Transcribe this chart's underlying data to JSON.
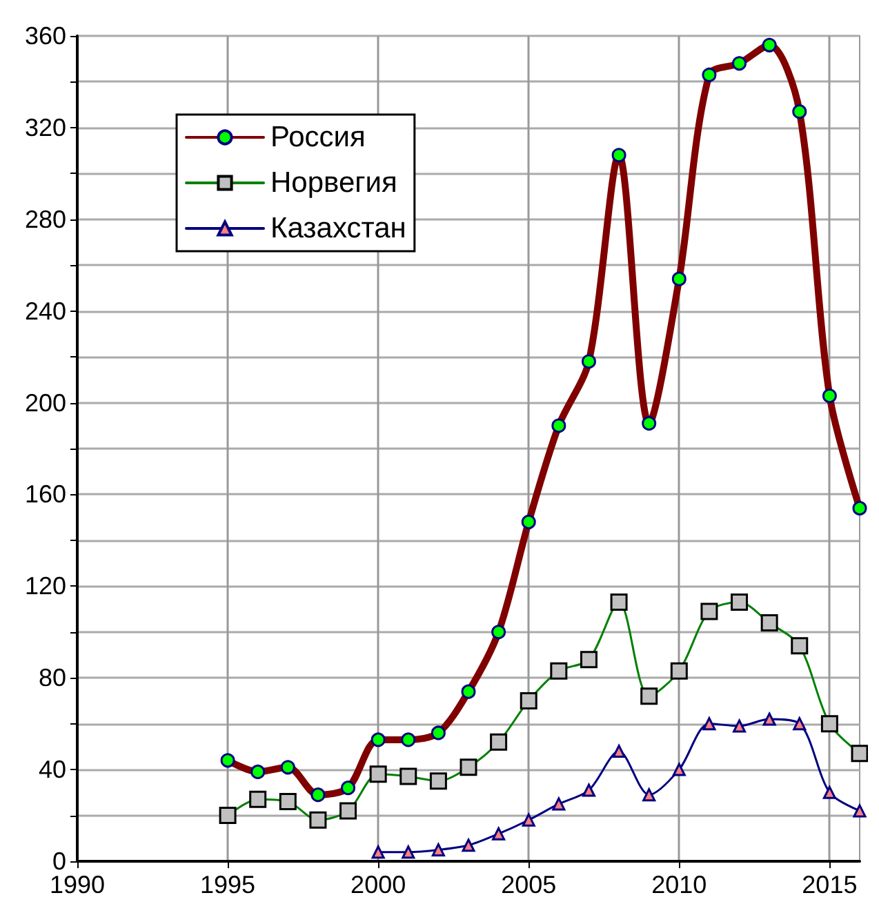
{
  "chart_data": {
    "type": "line",
    "x": [
      1995,
      1996,
      1997,
      1998,
      1999,
      2000,
      2001,
      2002,
      2003,
      2004,
      2005,
      2006,
      2007,
      2008,
      2009,
      2010,
      2011,
      2012,
      2013,
      2014,
      2015,
      2016
    ],
    "series": [
      {
        "name": "Россия",
        "color": "#800000",
        "marker": "circle",
        "values": [
          44,
          39,
          41,
          29,
          32,
          53,
          53,
          56,
          74,
          100,
          148,
          190,
          218,
          308,
          191,
          254,
          343,
          348,
          356,
          327,
          203,
          154
        ]
      },
      {
        "name": "Норвегия",
        "color": "#008000",
        "marker": "square",
        "values": [
          20,
          27,
          26,
          18,
          22,
          38,
          37,
          35,
          41,
          52,
          70,
          83,
          88,
          113,
          72,
          83,
          109,
          113,
          104,
          94,
          60,
          47
        ]
      },
      {
        "name": "Казахстан",
        "color": "#000080",
        "marker": "triangle",
        "values": [
          null,
          null,
          null,
          null,
          null,
          4,
          4,
          5,
          7,
          12,
          18,
          25,
          31,
          48,
          29,
          40,
          60,
          59,
          62,
          60,
          30,
          22
        ]
      }
    ],
    "xlim": [
      1990,
      2016
    ],
    "xticks": [
      1990,
      1995,
      2000,
      2005,
      2010,
      2015
    ],
    "ylim": [
      0,
      360
    ],
    "yticks": [
      0,
      {
        "value": 20,
        "label": null
      },
      40,
      {
        "value": 60,
        "label": null
      },
      80,
      {
        "value": 100,
        "label": null
      },
      120,
      {
        "value": 140,
        "label": null
      },
      160,
      {
        "value": 180,
        "label": null
      },
      200,
      {
        "value": 220,
        "label": null
      },
      240,
      {
        "value": 260,
        "label": null
      },
      280,
      {
        "value": 300,
        "label": null
      },
      320,
      {
        "value": 340,
        "label": null
      },
      360
    ],
    "grid": true,
    "legend": "top left"
  }
}
